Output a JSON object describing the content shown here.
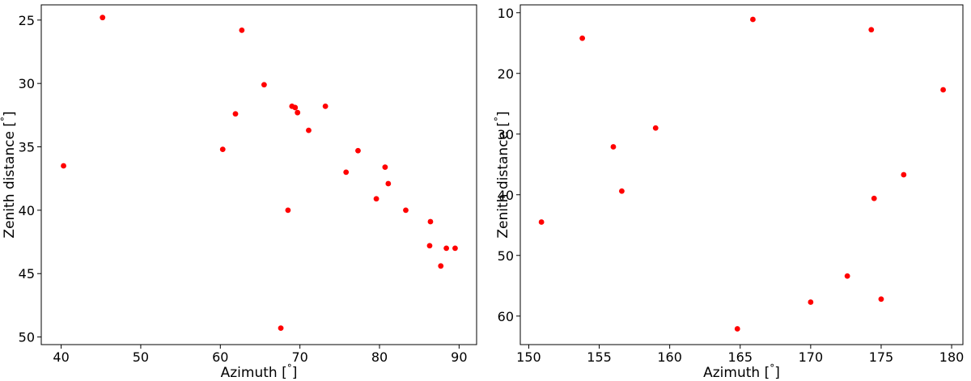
{
  "chart_data": [
    {
      "type": "scatter",
      "title": "",
      "xlabel": "Azimuth [$^\\circ$]",
      "xlabel_text": "Azimuth [",
      "xlabel_unit": "°",
      "ylabel_text": "Zenith distance [",
      "ylabel_unit": "°",
      "xlim": [
        37.5,
        92.2
      ],
      "ylim": [
        50.6,
        23.8
      ],
      "y_inverted": true,
      "xticks": [
        40,
        50,
        60,
        70,
        80,
        90
      ],
      "yticks": [
        25,
        30,
        35,
        40,
        45,
        50
      ],
      "marker_color": "#ff0000",
      "grid": false,
      "points": [
        {
          "x": 45.2,
          "y": 24.8
        },
        {
          "x": 62.7,
          "y": 25.8
        },
        {
          "x": 65.5,
          "y": 30.1
        },
        {
          "x": 61.9,
          "y": 32.4
        },
        {
          "x": 69.0,
          "y": 31.8
        },
        {
          "x": 69.4,
          "y": 31.9
        },
        {
          "x": 69.7,
          "y": 32.3
        },
        {
          "x": 73.2,
          "y": 31.8
        },
        {
          "x": 71.1,
          "y": 33.7
        },
        {
          "x": 60.3,
          "y": 35.2
        },
        {
          "x": 40.3,
          "y": 36.5
        },
        {
          "x": 77.3,
          "y": 35.3
        },
        {
          "x": 75.8,
          "y": 37.0
        },
        {
          "x": 80.7,
          "y": 36.6
        },
        {
          "x": 81.1,
          "y": 37.9
        },
        {
          "x": 79.6,
          "y": 39.1
        },
        {
          "x": 68.5,
          "y": 40.0
        },
        {
          "x": 83.3,
          "y": 40.0
        },
        {
          "x": 86.4,
          "y": 40.9
        },
        {
          "x": 86.3,
          "y": 42.8
        },
        {
          "x": 88.4,
          "y": 43.0
        },
        {
          "x": 89.5,
          "y": 43.0
        },
        {
          "x": 87.7,
          "y": 44.4
        },
        {
          "x": 67.6,
          "y": 49.3
        }
      ]
    },
    {
      "type": "scatter",
      "title": "",
      "xlabel_text": "Azimuth [",
      "xlabel_unit": "°",
      "ylabel_text": "Zenith distance [",
      "ylabel_unit": "°",
      "xlim": [
        149.4,
        180.8
      ],
      "ylim": [
        64.7,
        8.7
      ],
      "y_inverted": true,
      "xticks": [
        150,
        155,
        160,
        165,
        170,
        175,
        180
      ],
      "yticks": [
        10,
        20,
        30,
        40,
        50,
        60
      ],
      "marker_color": "#ff0000",
      "grid": false,
      "points": [
        {
          "x": 165.9,
          "y": 11.1
        },
        {
          "x": 153.8,
          "y": 14.2
        },
        {
          "x": 174.3,
          "y": 12.8
        },
        {
          "x": 179.4,
          "y": 22.7
        },
        {
          "x": 159.0,
          "y": 29.0
        },
        {
          "x": 156.0,
          "y": 32.1
        },
        {
          "x": 176.6,
          "y": 36.7
        },
        {
          "x": 156.6,
          "y": 39.4
        },
        {
          "x": 174.5,
          "y": 40.6
        },
        {
          "x": 150.9,
          "y": 44.5
        },
        {
          "x": 172.6,
          "y": 53.4
        },
        {
          "x": 175.0,
          "y": 57.2
        },
        {
          "x": 170.0,
          "y": 57.7
        },
        {
          "x": 164.8,
          "y": 62.1
        }
      ]
    }
  ]
}
